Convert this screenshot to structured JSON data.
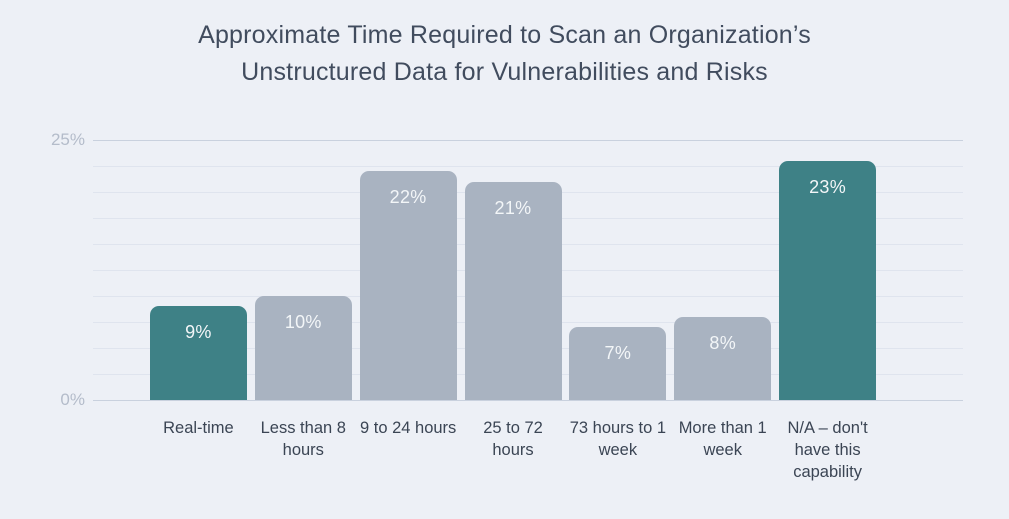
{
  "title": {
    "line1": "Approximate Time Required to Scan an Organization’s",
    "line2": "Unstructured Data for Vulnerabilities and Risks"
  },
  "axis": {
    "y_top_label": "25%",
    "y_bottom_label": "0%"
  },
  "chart_data": {
    "type": "bar",
    "title": "Approximate Time Required to Scan an Organization’s Unstructured Data for Vulnerabilities and Risks",
    "categories": [
      "Real-time",
      "Less than 8 hours",
      "9 to 24 hours",
      "25 to 72 hours",
      "73 hours to 1 week",
      "More than 1 week",
      "N/A – don't have this capability"
    ],
    "values": [
      9,
      10,
      22,
      21,
      7,
      8,
      23
    ],
    "value_labels": [
      "9%",
      "10%",
      "22%",
      "21%",
      "7%",
      "8%",
      "23%"
    ],
    "highlighted": [
      true,
      false,
      false,
      false,
      false,
      false,
      true
    ],
    "xlabel": "",
    "ylabel": "",
    "ylim": [
      0,
      25
    ],
    "ytick_labels": [
      "0%",
      "25%"
    ],
    "gridline_step": 2.5,
    "grid": "horizontal",
    "legend_position": "none",
    "colors": {
      "highlight_bar": "#3E8186",
      "default_bar": "#A9B3C1",
      "background": "#EDF0F6",
      "title_text": "#414C5E",
      "bar_label_text": "#F3F6F8",
      "category_text": "#3B4554",
      "tick_text": "#B4BCCA",
      "gridline_minor": "#DFE4EE",
      "gridline_major": "#C9D1DE"
    }
  }
}
